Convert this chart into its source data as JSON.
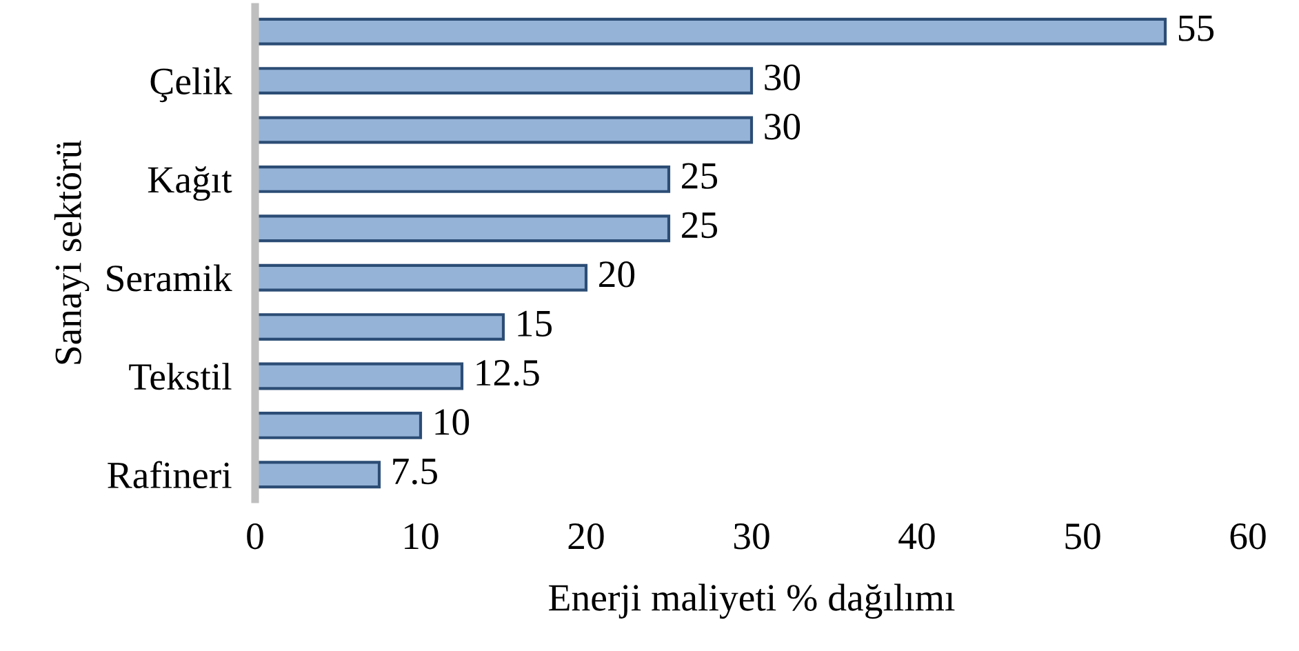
{
  "chart_data": {
    "type": "bar",
    "orientation": "horizontal",
    "xlabel": "Enerji maliyeti % dağılımı",
    "ylabel": "Sanayi sektörü",
    "categories": [
      null,
      "Çelik",
      null,
      "Kağıt",
      null,
      "Seramik",
      null,
      "Tekstil",
      null,
      "Rafineri"
    ],
    "values": [
      55,
      30,
      30,
      25,
      25,
      20,
      15,
      12.5,
      10,
      7.5
    ],
    "color": "#95b3d7",
    "xlim": [
      0,
      60
    ],
    "xticks": [
      0,
      10,
      20,
      30,
      40,
      50,
      60
    ],
    "data_labels": true,
    "grid": false,
    "legend": false
  }
}
